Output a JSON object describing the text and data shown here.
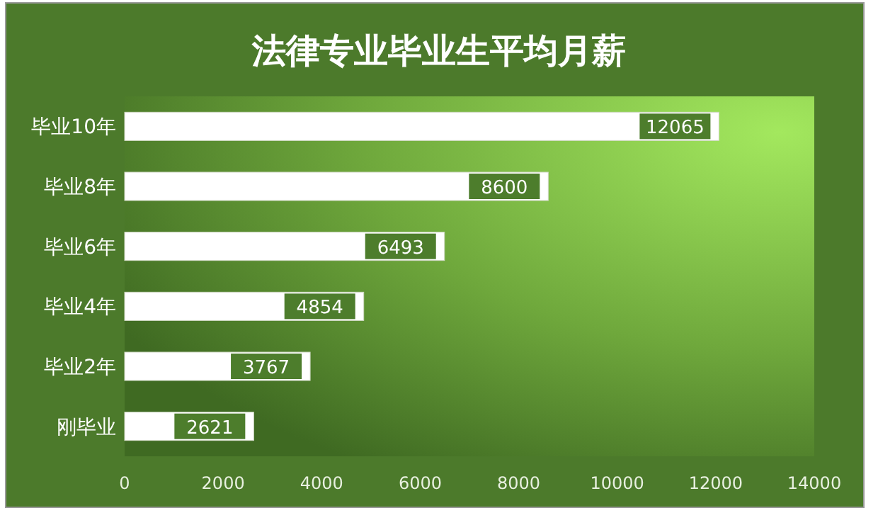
{
  "chart_data": {
    "type": "bar",
    "orientation": "horizontal",
    "title": "法律专业毕业生平均月薪",
    "categories": [
      "毕业10年",
      "毕业8年",
      "毕业6年",
      "毕业4年",
      "毕业2年",
      "刚毕业"
    ],
    "values": [
      12065,
      8600,
      6493,
      4854,
      3767,
      2621
    ],
    "color": "#ffffff",
    "xlim": [
      0,
      14000
    ],
    "xticks": [
      0,
      2000,
      4000,
      6000,
      8000,
      10000,
      12000,
      14000
    ],
    "data_labels": true
  }
}
